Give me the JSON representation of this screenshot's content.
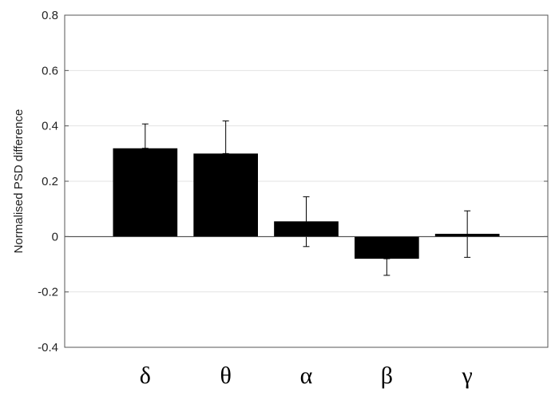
{
  "chart_data": {
    "type": "bar",
    "title": "",
    "xlabel": "",
    "ylabel": "Normalised PSD difference",
    "categories": [
      "δ",
      "θ",
      "α",
      "β",
      "γ"
    ],
    "values": [
      0.319,
      0.3,
      0.055,
      -0.08,
      0.01
    ],
    "error_upper": [
      0.407,
      0.418,
      0.144,
      -0.08,
      0.093
    ],
    "error_lower": [
      0.319,
      0.3,
      -0.036,
      -0.14,
      -0.075
    ],
    "ylim": [
      -0.4,
      0.8
    ],
    "yticks": [
      -0.4,
      -0.2,
      0,
      0.2,
      0.4,
      0.6,
      0.8
    ],
    "ytick_labels": [
      "-0.4",
      "-0.2",
      "0",
      "0.2",
      "0.4",
      "0.6",
      "0.8"
    ],
    "grid": true,
    "bar_color": "#000000",
    "grid_color": "#e3e3e3"
  }
}
